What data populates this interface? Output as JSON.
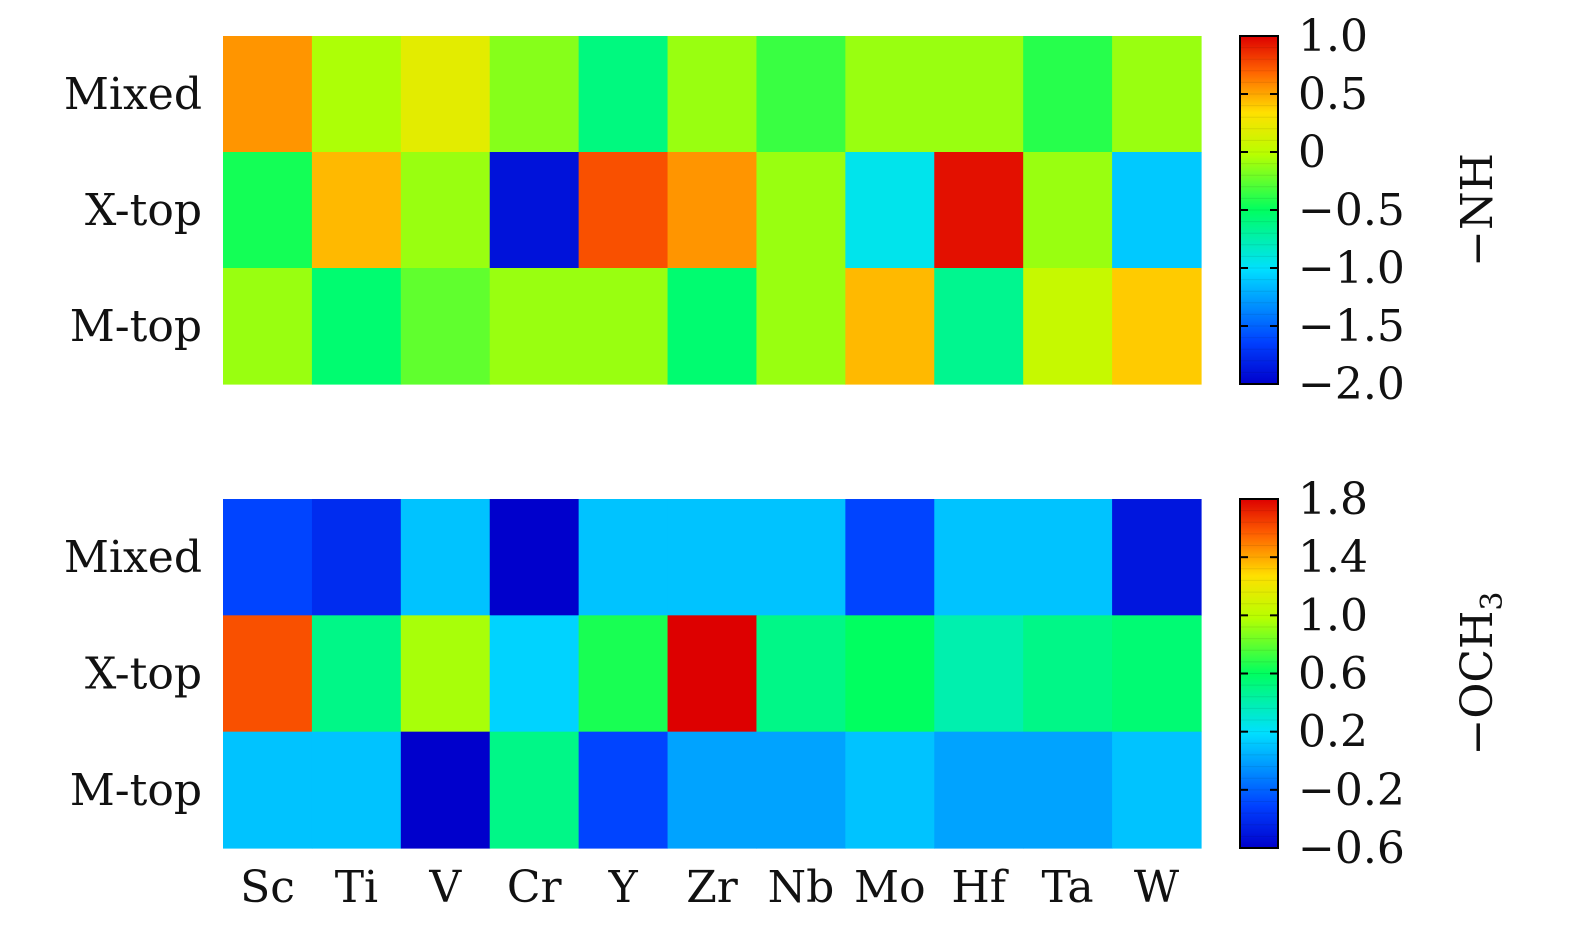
{
  "chart_data": [
    {
      "type": "heatmap",
      "columns": [
        "Sc",
        "Ti",
        "V",
        "Cr",
        "Y",
        "Zr",
        "Nb",
        "Mo",
        "Hf",
        "Ta",
        "W"
      ],
      "rows": [
        "Mixed",
        "X-top",
        "M-top"
      ],
      "values": [
        [
          0.55,
          -0.05,
          0.2,
          -0.15,
          -0.6,
          -0.1,
          -0.35,
          -0.1,
          -0.1,
          -0.4,
          -0.1
        ],
        [
          -0.45,
          0.45,
          -0.1,
          -1.9,
          0.75,
          0.55,
          -0.1,
          -0.95,
          0.95,
          -0.1,
          -1.1
        ],
        [
          -0.1,
          -0.55,
          -0.25,
          -0.1,
          -0.1,
          -0.55,
          -0.1,
          0.45,
          -0.65,
          0.05,
          0.4
        ]
      ],
      "colorbar": {
        "min": -2.0,
        "max": 1.0,
        "ticks": [
          "1.0",
          "0.5",
          "0",
          "−0.5",
          "−1.0",
          "−1.5",
          "−2.0"
        ],
        "label": "−NH"
      },
      "colormap": "jet"
    },
    {
      "type": "heatmap",
      "columns": [
        "Sc",
        "Ti",
        "V",
        "Cr",
        "Y",
        "Zr",
        "Nb",
        "Mo",
        "Hf",
        "Ta",
        "W"
      ],
      "rows": [
        "Mixed",
        "X-top",
        "M-top"
      ],
      "values": [
        [
          -0.3,
          -0.4,
          0.1,
          -0.6,
          0.1,
          0.1,
          0.1,
          -0.3,
          0.1,
          0.1,
          -0.5
        ],
        [
          1.6,
          0.5,
          0.95,
          0.15,
          0.65,
          1.8,
          0.5,
          0.6,
          0.4,
          0.5,
          0.55
        ],
        [
          0.1,
          0.1,
          -0.6,
          0.5,
          -0.3,
          0.0,
          0.0,
          0.1,
          0.0,
          0.0,
          0.1
        ]
      ],
      "colorbar": {
        "min": -0.6,
        "max": 1.8,
        "ticks": [
          "1.8",
          "1.4",
          "1.0",
          "0.6",
          "0.2",
          "−0.2",
          "−0.6"
        ],
        "label": "−OCH3"
      },
      "colormap": "jet"
    }
  ]
}
